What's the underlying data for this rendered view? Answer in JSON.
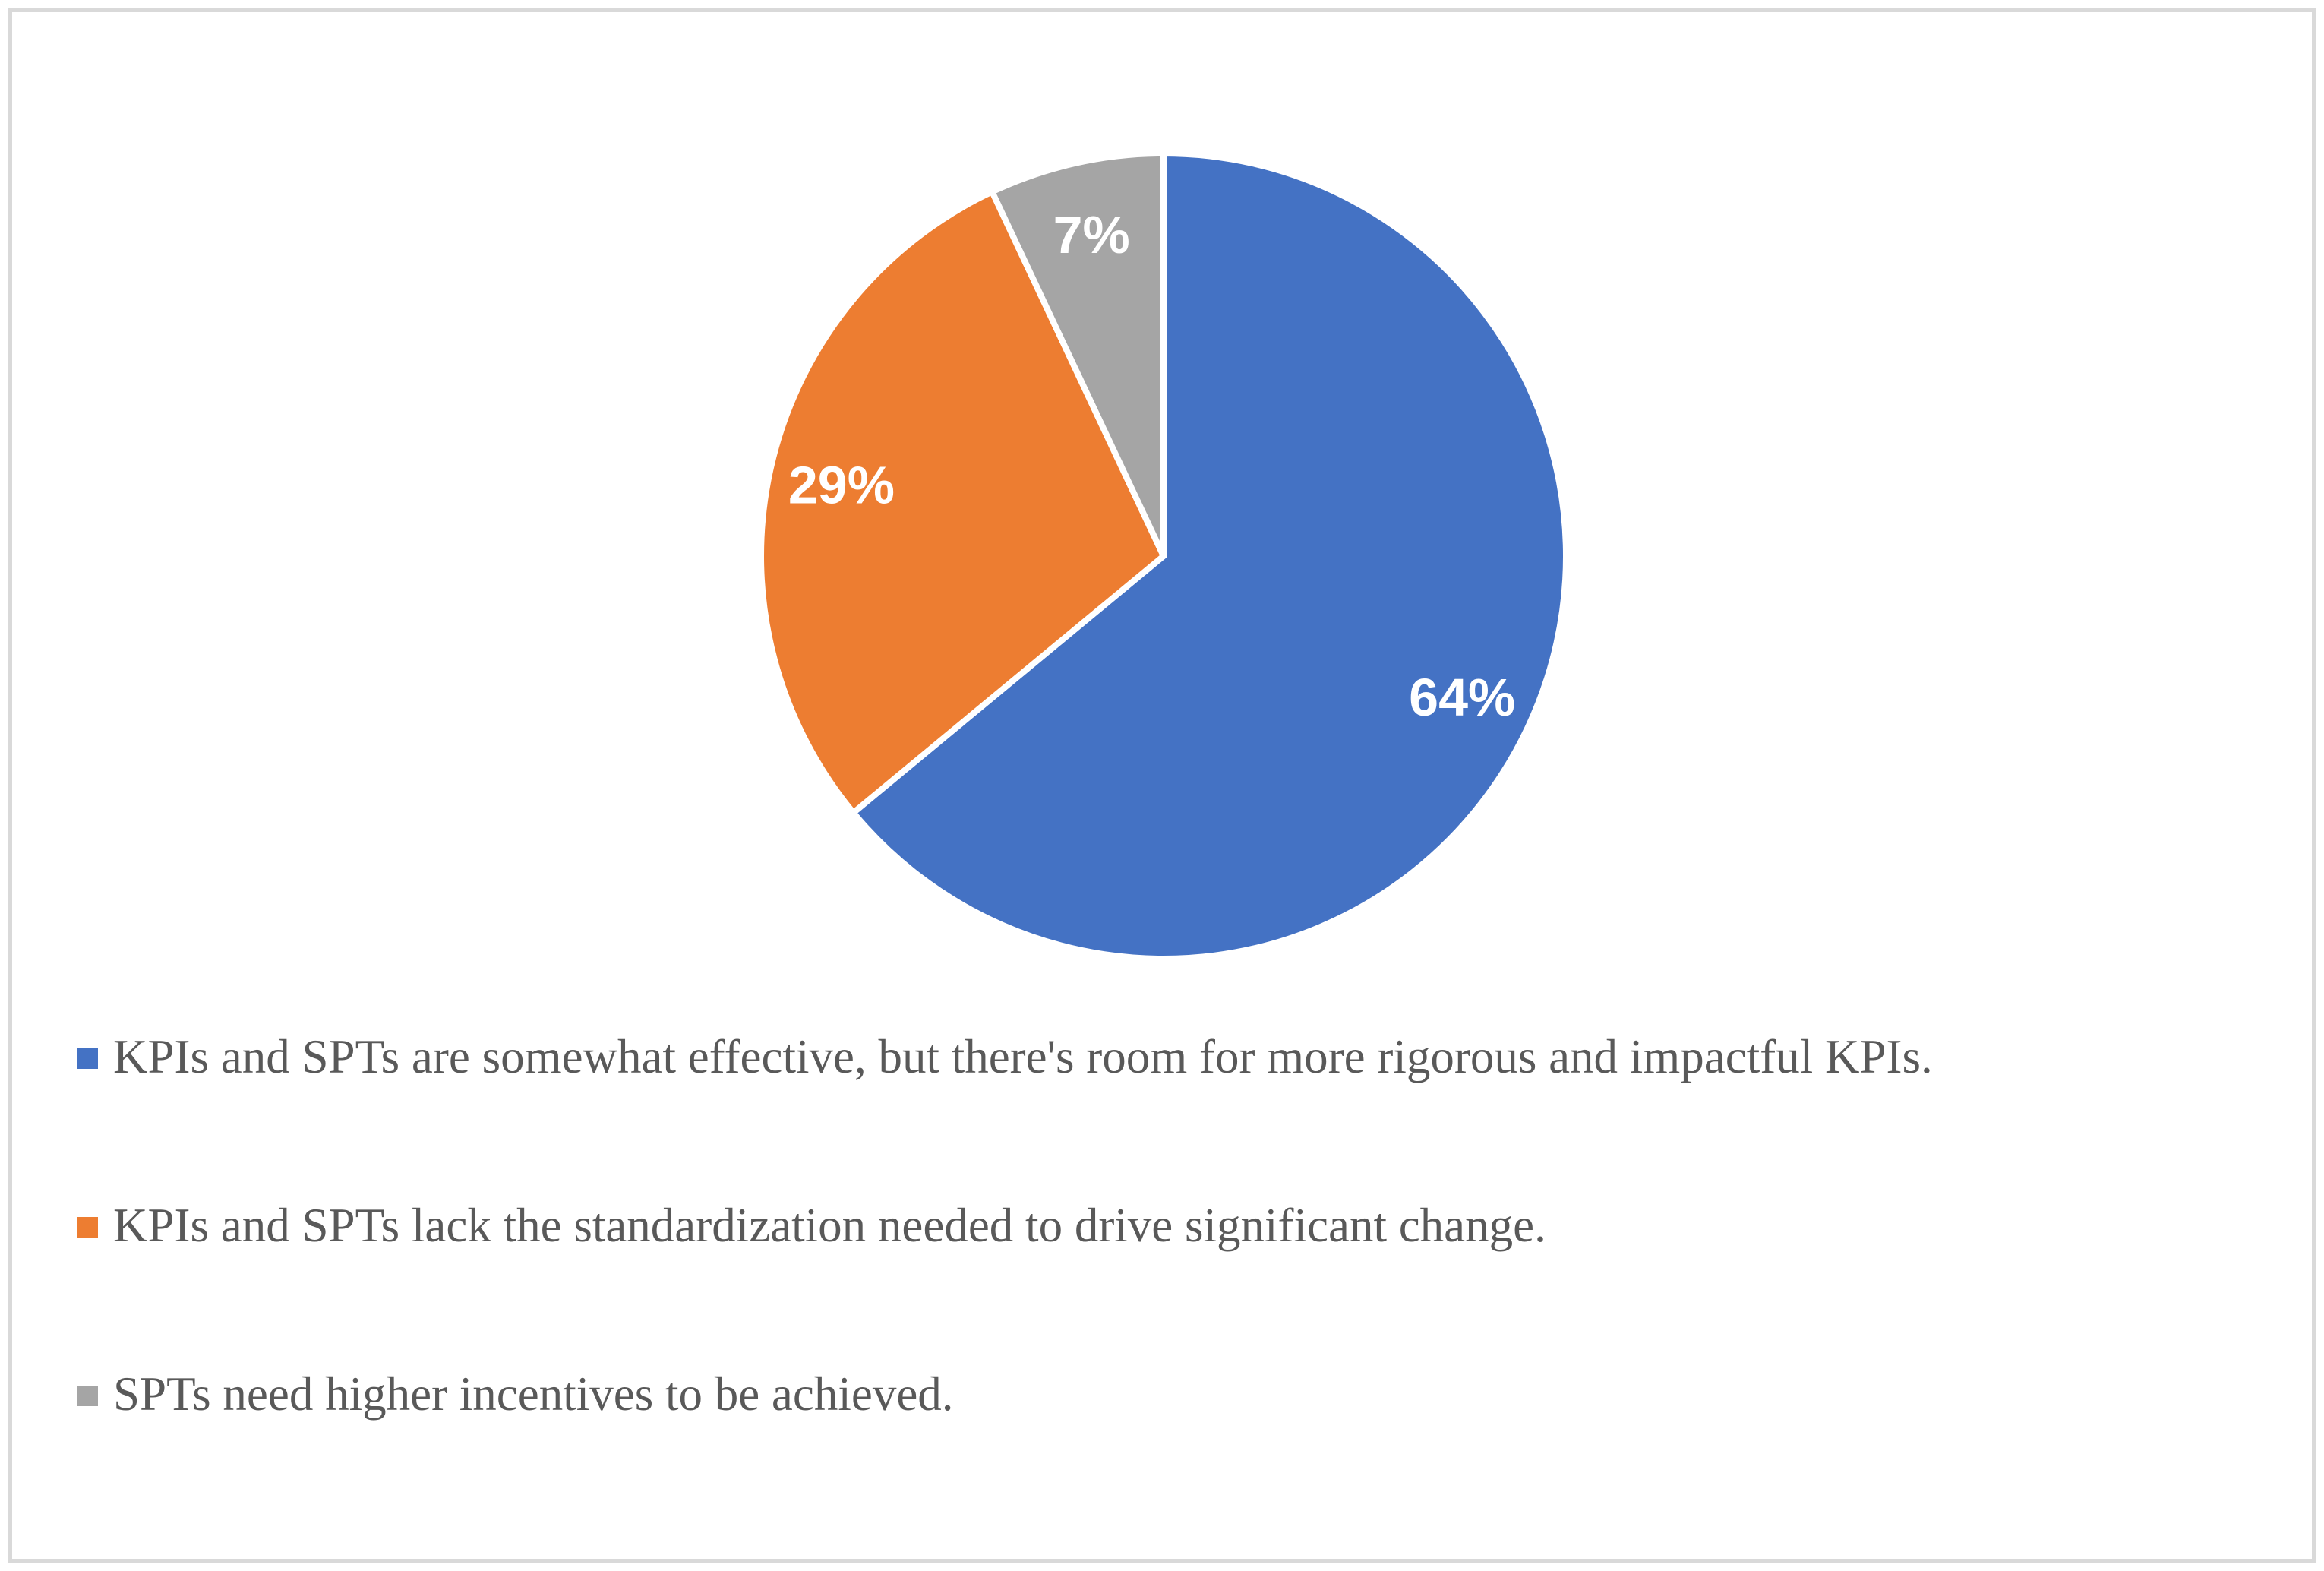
{
  "figure": {
    "background_color": "#FFFFFF",
    "border_color": "#D9D9D9"
  },
  "chart_data": {
    "type": "pie",
    "title": "",
    "slices": [
      {
        "label": "KPIs and SPTs are somewhat effective, but there's room for more rigorous and impactful KPIs.",
        "value": 64,
        "display": "64%",
        "color": "#4472C4"
      },
      {
        "label": "KPIs and SPTs lack the standardization needed to drive significant change.",
        "value": 29,
        "display": "29%",
        "color": "#ED7D31"
      },
      {
        "label": "SPTs need higher incentives to be achieved.",
        "value": 7,
        "display": "7%",
        "color": "#A5A5A5"
      }
    ],
    "start_angle_deg": 0,
    "direction": "clockwise",
    "slice_border_color": "#FFFFFF",
    "data_label_position": "inside",
    "data_label_color": "#FFFFFF",
    "legend_position": "bottom-left",
    "legend_text_color": "#595959",
    "grid": false
  }
}
